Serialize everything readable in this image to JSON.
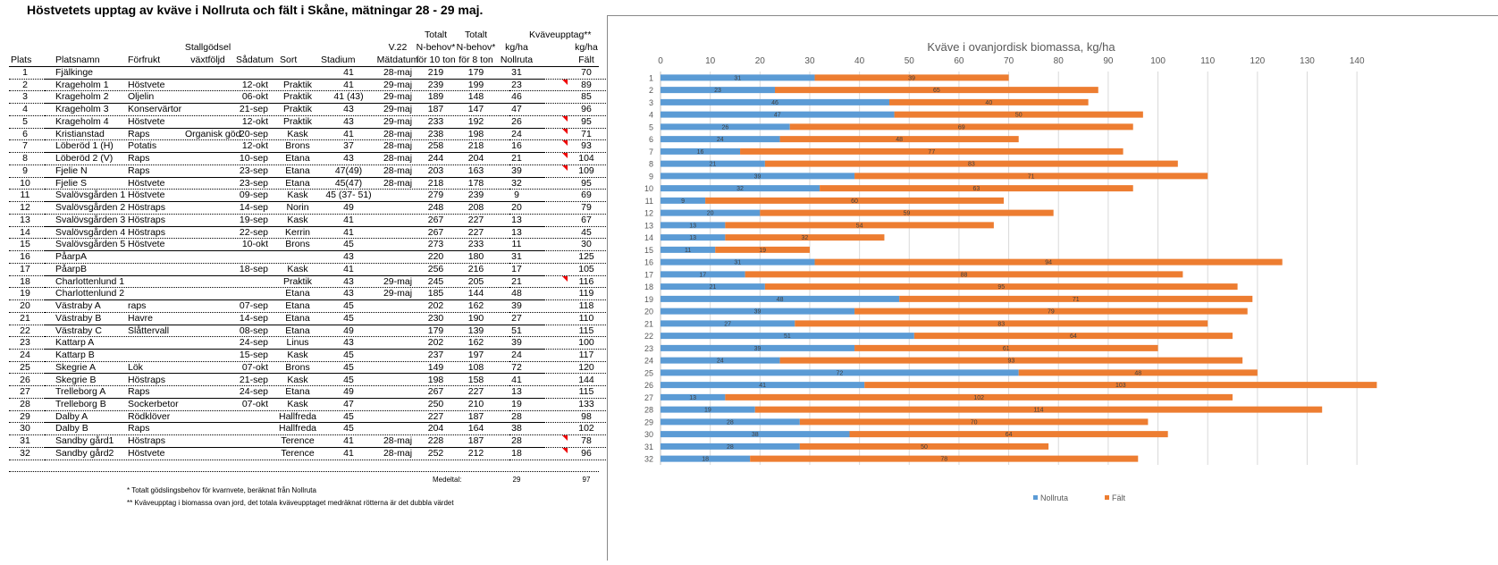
{
  "title": "Höstvetets upptag av kväve i Nollruta och fält i Skåne, mätningar 28 - 29 maj.",
  "headers": {
    "plats": "Plats",
    "platsnamn": "Platsnamn",
    "forfrukt": "Förfrukt",
    "stallgodsel_1": "Stallgödsel",
    "stallgodsel_2": "växtföljd",
    "sadatum": "Sådatum",
    "sort": "Sort",
    "stadium": "Stadium",
    "matdatum_1": "V.22",
    "matdatum_2": "Mätdatum",
    "n10_1": "Totalt",
    "n10_2": "N-behov*",
    "n10_3": "för 10 ton",
    "n8_1": "Totalt",
    "n8_2": "N-behov*",
    "n8_3": "för 8 ton",
    "kvave": "Kväveupptag**",
    "kgha_1": "kg/ha",
    "kgha_2": "kg/ha",
    "nollruta": "Nollruta",
    "falt": "Fält"
  },
  "rows": [
    {
      "plats": "1",
      "namn": "Fjälkinge",
      "forfrukt": "",
      "stall": "",
      "sadatum": "",
      "sort": "",
      "stadium": "41",
      "matdatum": "28-maj",
      "n10": "219",
      "n8": "179",
      "nollruta": "31",
      "falt": "70",
      "comment": false
    },
    {
      "plats": "2",
      "namn": "Krageholm 1",
      "forfrukt": "Höstvete",
      "stall": "",
      "sadatum": "12-okt",
      "sort": "Praktik",
      "stadium": "41",
      "matdatum": "29-maj",
      "n10": "239",
      "n8": "199",
      "nollruta": "23",
      "falt": "89",
      "comment": true
    },
    {
      "plats": "3",
      "namn": "Krageholm 2",
      "forfrukt": "Oljelin",
      "stall": "",
      "sadatum": "06-okt",
      "sort": "Praktik",
      "stadium": "41 (43)",
      "matdatum": "29-maj",
      "n10": "189",
      "n8": "148",
      "nollruta": "46",
      "falt": "85",
      "comment": false
    },
    {
      "plats": "4",
      "namn": "Krageholm 3",
      "forfrukt": "Konservärtor",
      "stall": "",
      "sadatum": "21-sep",
      "sort": "Praktik",
      "stadium": "43",
      "matdatum": "29-maj",
      "n10": "187",
      "n8": "147",
      "nollruta": "47",
      "falt": "96",
      "comment": false
    },
    {
      "plats": "5",
      "namn": "Krageholm 4",
      "forfrukt": "Höstvete",
      "stall": "",
      "sadatum": "12-okt",
      "sort": "Praktik",
      "stadium": "43",
      "matdatum": "29-maj",
      "n10": "233",
      "n8": "192",
      "nollruta": "26",
      "falt": "95",
      "comment": true
    },
    {
      "plats": "6",
      "namn": "Kristianstad",
      "forfrukt": "Raps",
      "stall": "Organisk göd",
      "sadatum": "20-sep",
      "sort": "Kask",
      "stadium": "41",
      "matdatum": "28-maj",
      "n10": "238",
      "n8": "198",
      "nollruta": "24",
      "falt": "71",
      "comment": true
    },
    {
      "plats": "7",
      "namn": "Löberöd 1 (H)",
      "forfrukt": "Potatis",
      "stall": "",
      "sadatum": "12-okt",
      "sort": "Brons",
      "stadium": "37",
      "matdatum": "28-maj",
      "n10": "258",
      "n8": "218",
      "nollruta": "16",
      "falt": "93",
      "comment": true
    },
    {
      "plats": "8",
      "namn": "Löberöd 2 (V)",
      "forfrukt": "Raps",
      "stall": "",
      "sadatum": "10-sep",
      "sort": "Etana",
      "stadium": "43",
      "matdatum": "28-maj",
      "n10": "244",
      "n8": "204",
      "nollruta": "21",
      "falt": "104",
      "comment": true
    },
    {
      "plats": "9",
      "namn": "Fjelie N",
      "forfrukt": "Raps",
      "stall": "",
      "sadatum": "23-sep",
      "sort": "Etana",
      "stadium": "47(49)",
      "matdatum": "28-maj",
      "n10": "203",
      "n8": "163",
      "nollruta": "39",
      "falt": "109",
      "comment": true
    },
    {
      "plats": "10",
      "namn": "Fjelie S",
      "forfrukt": "Höstvete",
      "stall": "",
      "sadatum": "23-sep",
      "sort": "Etana",
      "stadium": "45(47)",
      "matdatum": "28-maj",
      "n10": "218",
      "n8": "178",
      "nollruta": "32",
      "falt": "95",
      "comment": false
    },
    {
      "plats": "11",
      "namn": "Svalövsgården 1",
      "forfrukt": "Höstvete",
      "stall": "",
      "sadatum": "09-sep",
      "sort": "Kask",
      "stadium": "45 (37- 51)",
      "matdatum": "",
      "n10": "279",
      "n8": "239",
      "nollruta": "9",
      "falt": "69",
      "comment": false
    },
    {
      "plats": "12",
      "namn": "Svalövsgården 2",
      "forfrukt": "Höstraps",
      "stall": "",
      "sadatum": "14-sep",
      "sort": "Norin",
      "stadium": "49",
      "matdatum": "",
      "n10": "248",
      "n8": "208",
      "nollruta": "20",
      "falt": "79",
      "comment": false
    },
    {
      "plats": "13",
      "namn": "Svalövsgården 3",
      "forfrukt": "Höstraps",
      "stall": "",
      "sadatum": "19-sep",
      "sort": "Kask",
      "stadium": "41",
      "matdatum": "",
      "n10": "267",
      "n8": "227",
      "nollruta": "13",
      "falt": "67",
      "comment": false
    },
    {
      "plats": "14",
      "namn": "Svalövsgården 4",
      "forfrukt": "Höstraps",
      "stall": "",
      "sadatum": "22-sep",
      "sort": "Kerrin",
      "stadium": "41",
      "matdatum": "",
      "n10": "267",
      "n8": "227",
      "nollruta": "13",
      "falt": "45",
      "comment": false
    },
    {
      "plats": "15",
      "namn": "Svalövsgården 5",
      "forfrukt": "Höstvete",
      "stall": "",
      "sadatum": "10-okt",
      "sort": "Brons",
      "stadium": "45",
      "matdatum": "",
      "n10": "273",
      "n8": "233",
      "nollruta": "11",
      "falt": "30",
      "comment": false
    },
    {
      "plats": "16",
      "namn": "PåarpA",
      "forfrukt": "",
      "stall": "",
      "sadatum": "",
      "sort": "",
      "stadium": "43",
      "matdatum": "",
      "n10": "220",
      "n8": "180",
      "nollruta": "31",
      "falt": "125",
      "comment": false
    },
    {
      "plats": "17",
      "namn": "PåarpB",
      "forfrukt": "",
      "stall": "",
      "sadatum": "18-sep",
      "sort": "Kask",
      "stadium": "41",
      "matdatum": "",
      "n10": "256",
      "n8": "216",
      "nollruta": "17",
      "falt": "105",
      "comment": false
    },
    {
      "plats": "18",
      "namn": "Charlottenlund 1",
      "forfrukt": "",
      "stall": "",
      "sadatum": "",
      "sort": "Praktik",
      "stadium": "43",
      "matdatum": "29-maj",
      "n10": "245",
      "n8": "205",
      "nollruta": "21",
      "falt": "116",
      "comment": true
    },
    {
      "plats": "19",
      "namn": "Charlottenlund 2",
      "forfrukt": "",
      "stall": "",
      "sadatum": "",
      "sort": "Etana",
      "stadium": "43",
      "matdatum": "29-maj",
      "n10": "185",
      "n8": "144",
      "nollruta": "48",
      "falt": "119",
      "comment": false
    },
    {
      "plats": "20",
      "namn": "Västraby A",
      "forfrukt": "raps",
      "stall": "",
      "sadatum": "07-sep",
      "sort": "Etana",
      "stadium": "45",
      "matdatum": "",
      "n10": "202",
      "n8": "162",
      "nollruta": "39",
      "falt": "118",
      "comment": false
    },
    {
      "plats": "21",
      "namn": "Västraby B",
      "forfrukt": "Havre",
      "stall": "",
      "sadatum": "14-sep",
      "sort": "Etana",
      "stadium": "45",
      "matdatum": "",
      "n10": "230",
      "n8": "190",
      "nollruta": "27",
      "falt": "110",
      "comment": false
    },
    {
      "plats": "22",
      "namn": "Västraby C",
      "forfrukt": "Slåttervall",
      "stall": "",
      "sadatum": "08-sep",
      "sort": "Etana",
      "stadium": "49",
      "matdatum": "",
      "n10": "179",
      "n8": "139",
      "nollruta": "51",
      "falt": "115",
      "comment": false
    },
    {
      "plats": "23",
      "namn": "Kattarp A",
      "forfrukt": "",
      "stall": "",
      "sadatum": "24-sep",
      "sort": "Linus",
      "stadium": "43",
      "matdatum": "",
      "n10": "202",
      "n8": "162",
      "nollruta": "39",
      "falt": "100",
      "comment": false
    },
    {
      "plats": "24",
      "namn": "Kattarp B",
      "forfrukt": "",
      "stall": "",
      "sadatum": "15-sep",
      "sort": "Kask",
      "stadium": "45",
      "matdatum": "",
      "n10": "237",
      "n8": "197",
      "nollruta": "24",
      "falt": "117",
      "comment": false
    },
    {
      "plats": "25",
      "namn": "Skegrie A",
      "forfrukt": "Lök",
      "stall": "",
      "sadatum": "07-okt",
      "sort": "Brons",
      "stadium": "45",
      "matdatum": "",
      "n10": "149",
      "n8": "108",
      "nollruta": "72",
      "falt": "120",
      "comment": false
    },
    {
      "plats": "26",
      "namn": "Skegrie B",
      "forfrukt": "Höstraps",
      "stall": "",
      "sadatum": "21-sep",
      "sort": "Kask",
      "stadium": "45",
      "matdatum": "",
      "n10": "198",
      "n8": "158",
      "nollruta": "41",
      "falt": "144",
      "comment": false
    },
    {
      "plats": "27",
      "namn": "Trelleborg A",
      "forfrukt": "Raps",
      "stall": "",
      "sadatum": "24-sep",
      "sort": "Etana",
      "stadium": "49",
      "matdatum": "",
      "n10": "267",
      "n8": "227",
      "nollruta": "13",
      "falt": "115",
      "comment": false
    },
    {
      "plats": "28",
      "namn": "Trelleborg B",
      "forfrukt": "Sockerbetor",
      "stall": "",
      "sadatum": "07-okt",
      "sort": "Kask",
      "stadium": "47",
      "matdatum": "",
      "n10": "250",
      "n8": "210",
      "nollruta": "19",
      "falt": "133",
      "comment": false
    },
    {
      "plats": "29",
      "namn": "Dalby A",
      "forfrukt": "Rödklöver",
      "stall": "",
      "sadatum": "",
      "sort": "Hallfreda",
      "stadium": "45",
      "matdatum": "",
      "n10": "227",
      "n8": "187",
      "nollruta": "28",
      "falt": "98",
      "comment": false
    },
    {
      "plats": "30",
      "namn": "Dalby B",
      "forfrukt": "Raps",
      "stall": "",
      "sadatum": "",
      "sort": "Hallfreda",
      "stadium": "45",
      "matdatum": "",
      "n10": "204",
      "n8": "164",
      "nollruta": "38",
      "falt": "102",
      "comment": false
    },
    {
      "plats": "31",
      "namn": "Sandby gård1",
      "forfrukt": "Höstraps",
      "stall": "",
      "sadatum": "",
      "sort": "Terence",
      "stadium": "41",
      "matdatum": "28-maj",
      "n10": "228",
      "n8": "187",
      "nollruta": "28",
      "falt": "78",
      "comment": true
    },
    {
      "plats": "32",
      "namn": "Sandby gård2",
      "forfrukt": "Höstvete",
      "stall": "",
      "sadatum": "",
      "sort": "Terence",
      "stadium": "41",
      "matdatum": "28-maj",
      "n10": "252",
      "n8": "212",
      "nollruta": "18",
      "falt": "96",
      "comment": true
    }
  ],
  "footer": {
    "medeltal_label": "Medeltal:",
    "medeltal_nollruta": "29",
    "medeltal_falt": "97",
    "note1": "* Totalt gödslingsbehov för kvarnvete, beräknat från Nollruta",
    "note2": "** Kväveupptag i biomassa ovan jord, det totala kväveupptaget medräknat rötterna är det dubbla värdet"
  },
  "chart_data": {
    "type": "bar",
    "orientation": "horizontal",
    "stacked": true,
    "title": "Kväve i ovanjordisk biomassa, kg/ha",
    "categories": [
      "1",
      "2",
      "3",
      "4",
      "5",
      "6",
      "7",
      "8",
      "9",
      "10",
      "11",
      "12",
      "13",
      "14",
      "15",
      "16",
      "17",
      "18",
      "19",
      "20",
      "21",
      "22",
      "23",
      "24",
      "25",
      "26",
      "27",
      "28",
      "29",
      "30",
      "31",
      "32"
    ],
    "series": [
      {
        "name": "Nollruta",
        "color": "#5b9bd5",
        "values": [
          31,
          23,
          46,
          47,
          26,
          24,
          16,
          21,
          39,
          32,
          9,
          20,
          13,
          13,
          11,
          31,
          17,
          21,
          48,
          39,
          27,
          51,
          39,
          24,
          72,
          41,
          13,
          19,
          28,
          38,
          28,
          18
        ]
      },
      {
        "name": "Fält",
        "color": "#ed7d31",
        "values": [
          39,
          65,
          40,
          50,
          69,
          48,
          77,
          83,
          71,
          63,
          60,
          59,
          54,
          32,
          19,
          94,
          88,
          95,
          71,
          79,
          83,
          64,
          61,
          93,
          48,
          103,
          102,
          114,
          70,
          64,
          50,
          78
        ]
      }
    ],
    "xlim": [
      0,
      145
    ],
    "xticks": [
      "0",
      "10",
      "20",
      "30",
      "40",
      "50",
      "60",
      "70",
      "80",
      "90",
      "100",
      "110",
      "120",
      "130",
      "140"
    ],
    "grid": true,
    "x_axis_position": "top",
    "legend": "bottom",
    "data_labels": true
  }
}
